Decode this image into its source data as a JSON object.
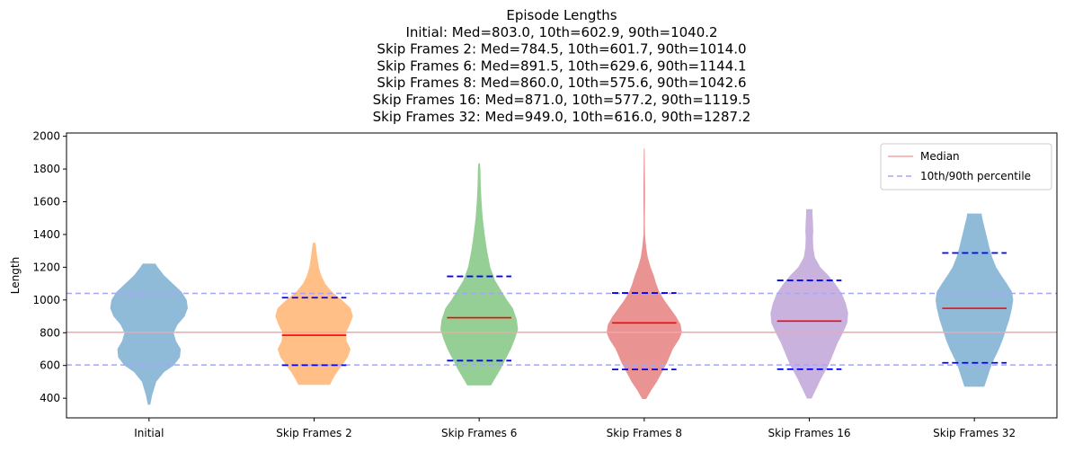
{
  "chart_data": {
    "type": "violin",
    "title_lines": [
      "Episode Lengths",
      "Initial: Med=803.0, 10th=602.9, 90th=1040.2",
      "Skip Frames 2: Med=784.5, 10th=601.7, 90th=1014.0",
      "Skip Frames 6: Med=891.5, 10th=629.6, 90th=1144.1",
      "Skip Frames 8: Med=860.0, 10th=575.6, 90th=1042.6",
      "Skip Frames 16: Med=871.0, 10th=577.2, 90th=1119.5",
      "Skip Frames 32: Med=949.0, 10th=616.0, 90th=1287.2"
    ],
    "ylabel": "Length",
    "xlabel": "",
    "ylim": [
      280,
      2020
    ],
    "yticks": [
      400,
      600,
      800,
      1000,
      1200,
      1400,
      1600,
      1800,
      2000
    ],
    "categories": [
      "Initial",
      "Skip Frames 2",
      "Skip Frames 6",
      "Skip Frames 8",
      "Skip Frames 16",
      "Skip Frames 32"
    ],
    "colors": [
      "#1f77b4",
      "#ff7f0e",
      "#2ca02c",
      "#d62728",
      "#9467bd",
      "#1f77b4"
    ],
    "violins": [
      {
        "name": "Initial",
        "median": 803.0,
        "p10": 602.9,
        "p90": 1040.2,
        "min": 360,
        "max": 1222,
        "profile": [
          [
            360,
            0.03
          ],
          [
            420,
            0.08
          ],
          [
            500,
            0.18
          ],
          [
            560,
            0.38
          ],
          [
            600,
            0.62
          ],
          [
            650,
            0.78
          ],
          [
            700,
            0.8
          ],
          [
            750,
            0.68
          ],
          [
            800,
            0.62
          ],
          [
            850,
            0.72
          ],
          [
            900,
            0.9
          ],
          [
            950,
            0.98
          ],
          [
            1000,
            0.95
          ],
          [
            1050,
            0.82
          ],
          [
            1100,
            0.6
          ],
          [
            1150,
            0.38
          ],
          [
            1200,
            0.22
          ],
          [
            1222,
            0.16
          ]
        ]
      },
      {
        "name": "Skip Frames 2",
        "median": 784.5,
        "p10": 601.7,
        "p90": 1014.0,
        "min": 482,
        "max": 1350,
        "profile": [
          [
            482,
            0.4
          ],
          [
            520,
            0.48
          ],
          [
            560,
            0.58
          ],
          [
            600,
            0.7
          ],
          [
            650,
            0.85
          ],
          [
            700,
            0.92
          ],
          [
            750,
            0.82
          ],
          [
            800,
            0.8
          ],
          [
            850,
            0.9
          ],
          [
            900,
            0.98
          ],
          [
            950,
            0.92
          ],
          [
            1000,
            0.7
          ],
          [
            1050,
            0.45
          ],
          [
            1100,
            0.28
          ],
          [
            1150,
            0.18
          ],
          [
            1200,
            0.12
          ],
          [
            1260,
            0.08
          ],
          [
            1320,
            0.05
          ],
          [
            1350,
            0.03
          ]
        ]
      },
      {
        "name": "Skip Frames 6",
        "median": 891.5,
        "p10": 629.6,
        "p90": 1144.1,
        "min": 478,
        "max": 1835,
        "profile": [
          [
            478,
            0.3
          ],
          [
            520,
            0.4
          ],
          [
            580,
            0.55
          ],
          [
            630,
            0.65
          ],
          [
            700,
            0.8
          ],
          [
            760,
            0.9
          ],
          [
            820,
            0.98
          ],
          [
            880,
            0.95
          ],
          [
            950,
            0.85
          ],
          [
            1000,
            0.7
          ],
          [
            1060,
            0.55
          ],
          [
            1120,
            0.4
          ],
          [
            1200,
            0.28
          ],
          [
            1300,
            0.2
          ],
          [
            1400,
            0.14
          ],
          [
            1500,
            0.09
          ],
          [
            1600,
            0.06
          ],
          [
            1700,
            0.04
          ],
          [
            1800,
            0.03
          ],
          [
            1835,
            0.02
          ]
        ]
      },
      {
        "name": "Skip Frames 8",
        "median": 860.0,
        "p10": 575.6,
        "p90": 1042.6,
        "min": 395,
        "max": 1925,
        "profile": [
          [
            395,
            0.05
          ],
          [
            450,
            0.18
          ],
          [
            500,
            0.32
          ],
          [
            560,
            0.45
          ],
          [
            620,
            0.58
          ],
          [
            700,
            0.72
          ],
          [
            760,
            0.88
          ],
          [
            800,
            0.95
          ],
          [
            850,
            0.92
          ],
          [
            900,
            0.8
          ],
          [
            950,
            0.65
          ],
          [
            1000,
            0.5
          ],
          [
            1050,
            0.38
          ],
          [
            1100,
            0.3
          ],
          [
            1150,
            0.24
          ],
          [
            1200,
            0.16
          ],
          [
            1260,
            0.09
          ],
          [
            1320,
            0.05
          ],
          [
            1400,
            0.02
          ],
          [
            1480,
            0.015
          ],
          [
            1600,
            0.02
          ],
          [
            1700,
            0.02
          ],
          [
            1800,
            0.015
          ],
          [
            1925,
            0.01
          ]
        ]
      },
      {
        "name": "Skip Frames 16",
        "median": 871.0,
        "p10": 577.2,
        "p90": 1119.5,
        "min": 398,
        "max": 1555,
        "profile": [
          [
            398,
            0.06
          ],
          [
            450,
            0.16
          ],
          [
            520,
            0.3
          ],
          [
            600,
            0.48
          ],
          [
            680,
            0.62
          ],
          [
            740,
            0.72
          ],
          [
            800,
            0.85
          ],
          [
            860,
            0.96
          ],
          [
            920,
            0.98
          ],
          [
            980,
            0.92
          ],
          [
            1040,
            0.82
          ],
          [
            1100,
            0.65
          ],
          [
            1150,
            0.48
          ],
          [
            1200,
            0.28
          ],
          [
            1260,
            0.14
          ],
          [
            1320,
            0.1
          ],
          [
            1380,
            0.09
          ],
          [
            1420,
            0.1
          ],
          [
            1480,
            0.09
          ],
          [
            1530,
            0.08
          ],
          [
            1555,
            0.08
          ]
        ]
      },
      {
        "name": "Skip Frames 32",
        "median": 949.0,
        "p10": 616.0,
        "p90": 1287.2,
        "min": 470,
        "max": 1528,
        "profile": [
          [
            470,
            0.25
          ],
          [
            520,
            0.32
          ],
          [
            580,
            0.4
          ],
          [
            640,
            0.5
          ],
          [
            700,
            0.62
          ],
          [
            760,
            0.72
          ],
          [
            820,
            0.8
          ],
          [
            880,
            0.88
          ],
          [
            950,
            0.95
          ],
          [
            1000,
            0.98
          ],
          [
            1050,
            0.95
          ],
          [
            1100,
            0.82
          ],
          [
            1150,
            0.68
          ],
          [
            1200,
            0.55
          ],
          [
            1260,
            0.45
          ],
          [
            1320,
            0.38
          ],
          [
            1400,
            0.3
          ],
          [
            1460,
            0.24
          ],
          [
            1500,
            0.2
          ],
          [
            1528,
            0.18
          ]
        ]
      }
    ],
    "reference_lines": {
      "median": 803.0,
      "p10": 602.9,
      "p90": 1040.2
    },
    "legend": {
      "placement": "top-right",
      "entries": [
        {
          "label": "Median",
          "color": "#f4a6a6",
          "style": "solid"
        },
        {
          "label": "10th/90th percentile",
          "color": "#a6a6f4",
          "style": "dashed"
        }
      ]
    },
    "median_marker_color": "#ff0000",
    "percentile_marker_color": "#0000ff"
  }
}
